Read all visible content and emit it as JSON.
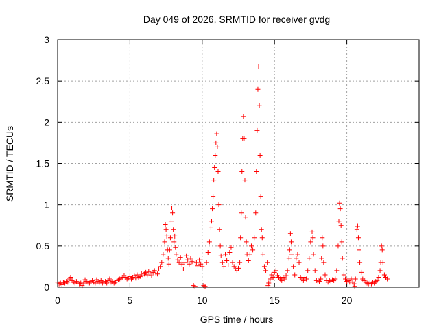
{
  "chart_data": {
    "type": "scatter",
    "title": "Day 049 of 2026, SRMTID for receiver gvdg",
    "xlabel": "GPS time / hours",
    "ylabel": "SRMTID / TECUs",
    "xlim": [
      0,
      25
    ],
    "ylim": [
      0,
      3
    ],
    "xticks": [
      0,
      5,
      10,
      15,
      20
    ],
    "yticks": [
      0,
      0.5,
      1,
      1.5,
      2,
      2.5,
      3
    ],
    "xtick_labels": [
      "0",
      "5",
      "10",
      "15",
      "20"
    ],
    "ytick_labels": [
      "0",
      "0.5",
      "1",
      "1.5",
      "2",
      "2.5",
      "3"
    ],
    "grid": true,
    "marker": "plus",
    "series": [
      {
        "name": "SRMTID",
        "color": "#ff0000",
        "points": [
          [
            0.0,
            0.06
          ],
          [
            0.1,
            0.04
          ],
          [
            0.2,
            0.05
          ],
          [
            0.3,
            0.03
          ],
          [
            0.4,
            0.06
          ],
          [
            0.5,
            0.05
          ],
          [
            0.6,
            0.07
          ],
          [
            0.7,
            0.06
          ],
          [
            0.8,
            0.1
          ],
          [
            0.9,
            0.12
          ],
          [
            1.0,
            0.08
          ],
          [
            1.1,
            0.06
          ],
          [
            1.2,
            0.05
          ],
          [
            1.3,
            0.07
          ],
          [
            1.4,
            0.06
          ],
          [
            1.5,
            0.04
          ],
          [
            1.6,
            0.05
          ],
          [
            1.7,
            0.02
          ],
          [
            1.8,
            0.05
          ],
          [
            1.9,
            0.09
          ],
          [
            2.0,
            0.07
          ],
          [
            2.1,
            0.06
          ],
          [
            2.2,
            0.05
          ],
          [
            2.3,
            0.07
          ],
          [
            2.4,
            0.08
          ],
          [
            2.5,
            0.06
          ],
          [
            2.6,
            0.05
          ],
          [
            2.7,
            0.09
          ],
          [
            2.8,
            0.07
          ],
          [
            2.9,
            0.06
          ],
          [
            3.0,
            0.08
          ],
          [
            3.1,
            0.05
          ],
          [
            3.2,
            0.06
          ],
          [
            3.3,
            0.07
          ],
          [
            3.4,
            0.05
          ],
          [
            3.5,
            0.08
          ],
          [
            3.6,
            0.1
          ],
          [
            3.7,
            0.06
          ],
          [
            3.8,
            0.07
          ],
          [
            3.9,
            0.05
          ],
          [
            4.0,
            0.06
          ],
          [
            4.1,
            0.08
          ],
          [
            4.2,
            0.09
          ],
          [
            4.3,
            0.1
          ],
          [
            4.4,
            0.11
          ],
          [
            4.5,
            0.12
          ],
          [
            4.6,
            0.14
          ],
          [
            4.7,
            0.12
          ],
          [
            4.8,
            0.1
          ],
          [
            4.9,
            0.11
          ],
          [
            5.0,
            0.13
          ],
          [
            5.1,
            0.1
          ],
          [
            5.2,
            0.12
          ],
          [
            5.3,
            0.14
          ],
          [
            5.4,
            0.11
          ],
          [
            5.5,
            0.15
          ],
          [
            5.6,
            0.12
          ],
          [
            5.7,
            0.13
          ],
          [
            5.8,
            0.17
          ],
          [
            5.9,
            0.14
          ],
          [
            6.0,
            0.16
          ],
          [
            6.1,
            0.18
          ],
          [
            6.2,
            0.15
          ],
          [
            6.3,
            0.19
          ],
          [
            6.4,
            0.17
          ],
          [
            6.5,
            0.14
          ],
          [
            6.6,
            0.18
          ],
          [
            6.7,
            0.2
          ],
          [
            6.8,
            0.17
          ],
          [
            6.9,
            0.16
          ],
          [
            7.0,
            0.22
          ],
          [
            7.1,
            0.25
          ],
          [
            7.2,
            0.3
          ],
          [
            7.3,
            0.4
          ],
          [
            7.4,
            0.55
          ],
          [
            7.45,
            0.76
          ],
          [
            7.5,
            0.7
          ],
          [
            7.55,
            0.62
          ],
          [
            7.6,
            0.45
          ],
          [
            7.65,
            0.35
          ],
          [
            7.7,
            0.28
          ],
          [
            7.75,
            0.45
          ],
          [
            7.8,
            0.6
          ],
          [
            7.85,
            0.8
          ],
          [
            7.9,
            0.96
          ],
          [
            7.95,
            0.9
          ],
          [
            8.0,
            0.7
          ],
          [
            8.05,
            0.55
          ],
          [
            8.1,
            0.62
          ],
          [
            8.15,
            0.48
          ],
          [
            8.2,
            0.4
          ],
          [
            8.3,
            0.33
          ],
          [
            8.4,
            0.3
          ],
          [
            8.5,
            0.36
          ],
          [
            8.6,
            0.28
          ],
          [
            8.7,
            0.22
          ],
          [
            8.8,
            0.3
          ],
          [
            8.9,
            0.38
          ],
          [
            9.0,
            0.33
          ],
          [
            9.1,
            0.28
          ],
          [
            9.2,
            0.35
          ],
          [
            9.3,
            0.31
          ],
          [
            9.4,
            0.02
          ],
          [
            9.5,
            0.01
          ],
          [
            9.6,
            0.3
          ],
          [
            9.7,
            0.26
          ],
          [
            9.8,
            0.33
          ],
          [
            9.9,
            0.28
          ],
          [
            10.0,
            0.25
          ],
          [
            10.1,
            0.02
          ],
          [
            10.2,
            0.01
          ],
          [
            10.3,
            0.3
          ],
          [
            10.4,
            0.42
          ],
          [
            10.5,
            0.55
          ],
          [
            10.6,
            0.72
          ],
          [
            10.65,
            0.8
          ],
          [
            10.7,
            0.95
          ],
          [
            10.75,
            1.1
          ],
          [
            10.8,
            1.3
          ],
          [
            10.85,
            1.45
          ],
          [
            10.9,
            1.6
          ],
          [
            10.95,
            1.75
          ],
          [
            11.0,
            1.86
          ],
          [
            11.05,
            1.7
          ],
          [
            11.1,
            1.4
          ],
          [
            11.15,
            1.0
          ],
          [
            11.2,
            0.7
          ],
          [
            11.25,
            0.5
          ],
          [
            11.3,
            0.38
          ],
          [
            11.4,
            0.3
          ],
          [
            11.5,
            0.25
          ],
          [
            11.6,
            0.4
          ],
          [
            11.7,
            0.32
          ],
          [
            11.8,
            0.27
          ],
          [
            11.9,
            0.42
          ],
          [
            12.0,
            0.48
          ],
          [
            12.1,
            0.3
          ],
          [
            12.2,
            0.25
          ],
          [
            12.3,
            0.22
          ],
          [
            12.4,
            0.2
          ],
          [
            12.5,
            0.23
          ],
          [
            12.6,
            0.3
          ],
          [
            12.65,
            0.6
          ],
          [
            12.7,
            0.9
          ],
          [
            12.75,
            1.4
          ],
          [
            12.8,
            1.8
          ],
          [
            12.85,
            2.07
          ],
          [
            12.9,
            1.8
          ],
          [
            12.95,
            1.3
          ],
          [
            13.0,
            0.85
          ],
          [
            13.05,
            0.55
          ],
          [
            13.1,
            0.4
          ],
          [
            13.2,
            0.32
          ],
          [
            13.3,
            0.4
          ],
          [
            13.4,
            0.5
          ],
          [
            13.5,
            0.45
          ],
          [
            13.6,
            0.6
          ],
          [
            13.7,
            0.9
          ],
          [
            13.75,
            1.4
          ],
          [
            13.8,
            1.9
          ],
          [
            13.85,
            2.4
          ],
          [
            13.9,
            2.68
          ],
          [
            13.95,
            2.2
          ],
          [
            14.0,
            1.6
          ],
          [
            14.05,
            1.1
          ],
          [
            14.1,
            0.7
          ],
          [
            14.15,
            0.6
          ],
          [
            14.2,
            0.4
          ],
          [
            14.3,
            0.25
          ],
          [
            14.4,
            0.2
          ],
          [
            14.5,
            0.3
          ],
          [
            14.55,
            0.02
          ],
          [
            14.6,
            0.05
          ],
          [
            14.7,
            0.1
          ],
          [
            14.8,
            0.15
          ],
          [
            14.9,
            0.12
          ],
          [
            15.0,
            0.18
          ],
          [
            15.1,
            0.2
          ],
          [
            15.2,
            0.14
          ],
          [
            15.3,
            0.12
          ],
          [
            15.4,
            0.1
          ],
          [
            15.5,
            0.08
          ],
          [
            15.6,
            0.12
          ],
          [
            15.7,
            0.1
          ],
          [
            15.8,
            0.14
          ],
          [
            15.9,
            0.2
          ],
          [
            16.0,
            0.35
          ],
          [
            16.05,
            0.45
          ],
          [
            16.1,
            0.65
          ],
          [
            16.15,
            0.55
          ],
          [
            16.2,
            0.4
          ],
          [
            16.3,
            0.25
          ],
          [
            16.4,
            0.15
          ],
          [
            16.5,
            0.35
          ],
          [
            16.6,
            0.4
          ],
          [
            16.7,
            0.3
          ],
          [
            16.8,
            0.12
          ],
          [
            16.9,
            0.1
          ],
          [
            17.0,
            0.08
          ],
          [
            17.1,
            0.12
          ],
          [
            17.2,
            0.1
          ],
          [
            17.3,
            0.2
          ],
          [
            17.4,
            0.35
          ],
          [
            17.5,
            0.55
          ],
          [
            17.6,
            0.67
          ],
          [
            17.65,
            0.6
          ],
          [
            17.7,
            0.4
          ],
          [
            17.8,
            0.2
          ],
          [
            17.9,
            0.08
          ],
          [
            18.0,
            0.06
          ],
          [
            18.1,
            0.07
          ],
          [
            18.2,
            0.1
          ],
          [
            18.25,
            0.35
          ],
          [
            18.3,
            0.6
          ],
          [
            18.35,
            0.5
          ],
          [
            18.4,
            0.3
          ],
          [
            18.5,
            0.15
          ],
          [
            18.6,
            0.08
          ],
          [
            18.7,
            0.06
          ],
          [
            18.8,
            0.08
          ],
          [
            18.9,
            0.07
          ],
          [
            19.0,
            0.09
          ],
          [
            19.1,
            0.08
          ],
          [
            19.2,
            0.1
          ],
          [
            19.3,
            0.2
          ],
          [
            19.4,
            0.5
          ],
          [
            19.45,
            0.8
          ],
          [
            19.5,
            1.02
          ],
          [
            19.55,
            0.95
          ],
          [
            19.6,
            0.75
          ],
          [
            19.65,
            0.55
          ],
          [
            19.7,
            0.35
          ],
          [
            19.8,
            0.15
          ],
          [
            19.9,
            0.1
          ],
          [
            20.0,
            0.07
          ],
          [
            20.1,
            0.08
          ],
          [
            20.2,
            0.06
          ],
          [
            20.3,
            0.1
          ],
          [
            20.4,
            0.06
          ],
          [
            20.5,
            0.04
          ],
          [
            20.55,
            0.01
          ],
          [
            20.6,
            0.1
          ],
          [
            20.7,
            0.7
          ],
          [
            20.75,
            0.74
          ],
          [
            20.8,
            0.6
          ],
          [
            20.85,
            0.45
          ],
          [
            20.9,
            0.3
          ],
          [
            21.0,
            0.18
          ],
          [
            21.1,
            0.1
          ],
          [
            21.2,
            0.08
          ],
          [
            21.3,
            0.06
          ],
          [
            21.4,
            0.05
          ],
          [
            21.5,
            0.04
          ],
          [
            21.6,
            0.05
          ],
          [
            21.7,
            0.04
          ],
          [
            21.8,
            0.06
          ],
          [
            21.9,
            0.05
          ],
          [
            22.0,
            0.07
          ],
          [
            22.1,
            0.08
          ],
          [
            22.2,
            0.12
          ],
          [
            22.3,
            0.2
          ],
          [
            22.35,
            0.3
          ],
          [
            22.4,
            0.5
          ],
          [
            22.45,
            0.45
          ],
          [
            22.5,
            0.3
          ],
          [
            22.6,
            0.15
          ],
          [
            22.7,
            0.12
          ],
          [
            22.8,
            0.1
          ]
        ]
      }
    ]
  }
}
